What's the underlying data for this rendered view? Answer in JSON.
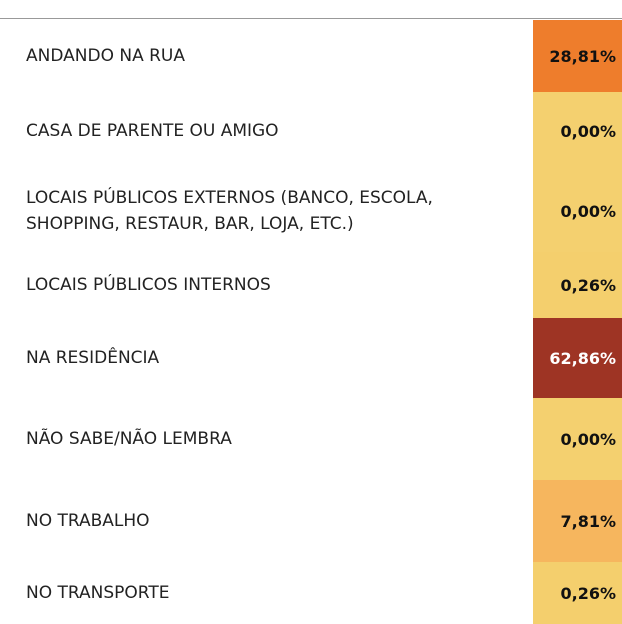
{
  "table": {
    "rows": [
      {
        "label": "ANDANDO NA RUA",
        "value": "28,81%",
        "color": "#ee7d2c"
      },
      {
        "label": "CASA DE PARENTE OU AMIGO",
        "value": "0,00%",
        "color": "#f4d06f"
      },
      {
        "label": "LOCAIS PÚBLICOS EXTERNOS (BANCO, ESCOLA, SHOPPING, RESTAUR, BAR, LOJA, ETC.)",
        "value": "0,00%",
        "color": "#f4d06f"
      },
      {
        "label": "LOCAIS PÚBLICOS INTERNOS",
        "value": "0,26%",
        "color": "#f4cf6d"
      },
      {
        "label": "NA RESIDÊNCIA",
        "value": "62,86%",
        "color": "#9e3424"
      },
      {
        "label": "NÃO SABE/NÃO LEMBRA",
        "value": "0,00%",
        "color": "#f4d06f"
      },
      {
        "label": "NO TRABALHO",
        "value": "7,81%",
        "color": "#f6b65e"
      },
      {
        "label": "NO TRANSPORTE",
        "value": "0,26%",
        "color": "#f4cf6d"
      }
    ]
  }
}
